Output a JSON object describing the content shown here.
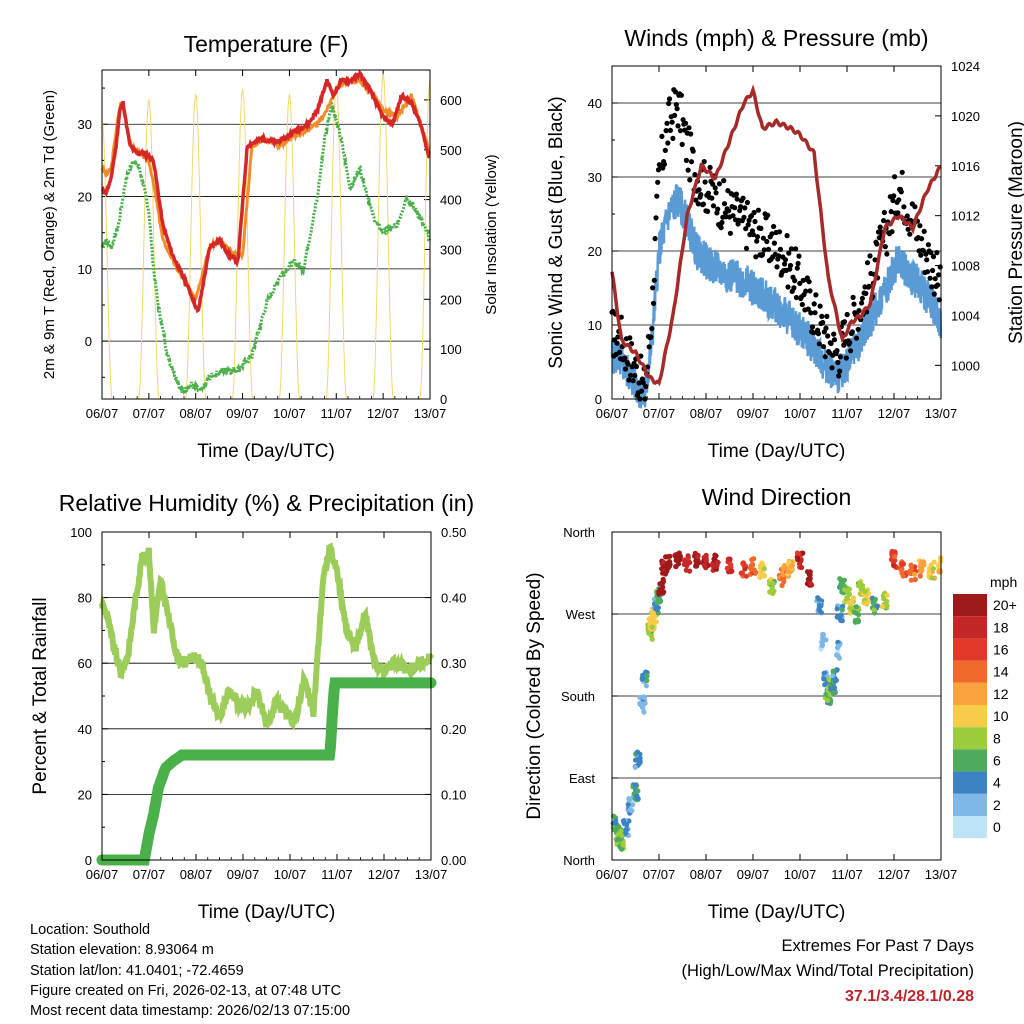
{
  "chart_data": [
    {
      "type": "line",
      "title": "Temperature (F)",
      "xlabel": "Time (Day/UTC)",
      "ylabel": "2m & 9m T (Red, Orange) & 2m Td (Green)",
      "y2label": "Solar Insolation (Yellow)",
      "ylim": [
        -8,
        37.5
      ],
      "y2lim": [
        0,
        660
      ],
      "yticks": [
        0,
        10,
        20,
        30
      ],
      "y2ticks": [
        0,
        100,
        200,
        300,
        400,
        500,
        600
      ],
      "x_ticks": [
        "06/07",
        "07/07",
        "08/07",
        "09/07",
        "10/07",
        "11/07",
        "12/07",
        "13/07"
      ],
      "series": [
        {
          "name": "2m T",
          "color": "#d62728",
          "x": [
            0,
            0.08,
            0.18,
            0.3,
            0.38,
            0.45,
            0.52,
            0.6,
            0.75,
            0.9,
            1.1,
            1.3,
            1.5,
            1.8,
            2.05,
            2.3,
            2.5,
            2.7,
            2.9,
            3.1,
            3.4,
            3.7,
            3.9,
            4.1,
            4.4,
            4.6,
            4.8,
            4.95,
            5.1,
            5.3,
            5.5,
            5.7,
            5.85,
            6.0,
            6.2,
            6.4,
            6.6,
            6.8,
            7.0
          ],
          "values": [
            21,
            20.5,
            22,
            27,
            32,
            33,
            30,
            27,
            26,
            26,
            25,
            16,
            12,
            8,
            4,
            13,
            14,
            12,
            11,
            27,
            28,
            27.5,
            28,
            29,
            30,
            32,
            36,
            34,
            36,
            36,
            37,
            35,
            33,
            31,
            30,
            34,
            33,
            30,
            25
          ]
        },
        {
          "name": "9m T",
          "color": "#f28c28",
          "x": [
            0,
            0.1,
            0.2,
            0.32,
            0.4,
            0.48,
            0.55,
            0.62,
            0.8,
            1.0,
            1.15,
            1.3,
            1.6,
            2.0,
            2.3,
            2.5,
            2.8,
            3.0,
            3.2,
            3.5,
            3.8,
            4.0,
            4.3,
            4.6,
            4.8,
            5.0,
            5.2,
            5.5,
            5.8,
            6.0,
            6.3,
            6.6,
            6.8,
            7.0
          ],
          "values": [
            24,
            23,
            24,
            30,
            33,
            32,
            29,
            27,
            26,
            25,
            20,
            14,
            10,
            6,
            13,
            14,
            12,
            12,
            27,
            28,
            27,
            28,
            29,
            30,
            32,
            35,
            36,
            36,
            34,
            32,
            31,
            34,
            30,
            26
          ]
        },
        {
          "name": "2m Td",
          "color": "#4ab04a",
          "x": [
            0,
            0.1,
            0.2,
            0.35,
            0.5,
            0.65,
            0.8,
            1.0,
            1.1,
            1.2,
            1.4,
            1.7,
            1.9,
            2.1,
            2.3,
            2.6,
            2.9,
            3.2,
            3.5,
            3.8,
            4.1,
            4.3,
            4.6,
            4.75,
            4.9,
            5.1,
            5.3,
            5.5,
            5.8,
            6.0,
            6.3,
            6.5,
            6.8,
            7.0
          ],
          "values": [
            13,
            14,
            13,
            16,
            22,
            25,
            24,
            18,
            10,
            5,
            -2,
            -7,
            -6,
            -7,
            -5,
            -4,
            -4,
            -2,
            5,
            9,
            11,
            10,
            20,
            28,
            33,
            28,
            21,
            24,
            17,
            15,
            16,
            20,
            17,
            14
          ]
        },
        {
          "name": "Solar Insolation",
          "color": "#f5d76e",
          "axis": "y2",
          "day_peaks": [
            600,
            610,
            620,
            610,
            630,
            650,
            640
          ]
        }
      ]
    },
    {
      "type": "line",
      "title": "Winds (mph) & Pressure (mb)",
      "xlabel": "Time (Day/UTC)",
      "ylabel": "Sonic Wind & Gust (Blue, Black)",
      "y2label": "Station Pressure (Maroon)",
      "ylim": [
        0,
        45
      ],
      "y2lim": [
        997.3,
        1024
      ],
      "yticks": [
        0,
        10,
        20,
        30,
        40
      ],
      "y2ticks": [
        1000,
        1004,
        1008,
        1012,
        1016,
        1020,
        1024
      ],
      "x_ticks": [
        "06/07",
        "07/07",
        "08/07",
        "09/07",
        "10/07",
        "11/07",
        "12/07",
        "13/07"
      ],
      "series": [
        {
          "name": "Sonic Wind",
          "color": "#5b9bd5",
          "x": [
            0,
            0.2,
            0.5,
            0.7,
            0.85,
            1.0,
            1.2,
            1.4,
            1.6,
            1.8,
            2.1,
            2.4,
            2.8,
            3.2,
            3.6,
            3.9,
            4.2,
            4.5,
            4.8,
            5.0,
            5.3,
            5.6,
            5.9,
            6.1,
            6.3,
            6.6,
            6.9,
            7.0
          ],
          "values": [
            6,
            5,
            2,
            0,
            8,
            20,
            25,
            27,
            24,
            20,
            18,
            17,
            16,
            14,
            12,
            10,
            8,
            5,
            3,
            5,
            8,
            12,
            16,
            19,
            17,
            15,
            12,
            10
          ]
        },
        {
          "name": "Gust",
          "color": "#000000",
          "x": [
            0,
            0.2,
            0.5,
            0.7,
            0.85,
            1.0,
            1.2,
            1.4,
            1.6,
            1.8,
            2.1,
            2.4,
            2.8,
            3.2,
            3.6,
            3.9,
            4.2,
            4.5,
            4.8,
            5.0,
            5.3,
            5.6,
            5.9,
            6.1,
            6.3,
            6.6,
            6.9,
            7.0
          ],
          "values": [
            9,
            8,
            4,
            1,
            12,
            30,
            37,
            40,
            34,
            30,
            28,
            26,
            24,
            22,
            20,
            17,
            13,
            9,
            6,
            9,
            13,
            18,
            24,
            29,
            26,
            21,
            17,
            14
          ]
        },
        {
          "name": "Station Pressure",
          "color": "#a52a2a",
          "axis": "y2",
          "x": [
            0,
            0.2,
            0.5,
            0.8,
            1.0,
            1.3,
            1.6,
            1.9,
            2.2,
            2.5,
            2.8,
            3.0,
            3.2,
            3.5,
            3.8,
            4.0,
            4.3,
            4.6,
            4.9,
            5.1,
            5.3,
            5.5,
            5.8,
            6.1,
            6.4,
            6.7,
            7.0
          ],
          "values": [
            1007.5,
            1002,
            1001,
            999,
            998.5,
            1004,
            1012,
            1016,
            1015,
            1018,
            1021,
            1022,
            1019,
            1019.5,
            1019,
            1018.5,
            1017,
            1007,
            1002,
            1003.5,
            1004,
            1005,
            1011,
            1012,
            1011,
            1014,
            1016
          ]
        }
      ]
    },
    {
      "type": "line",
      "title": "Relative Humidity (%) & Precipitation (in)",
      "xlabel": "Time (Day/UTC)",
      "ylabel": "Percent & Total Rainfall",
      "ylim": [
        0,
        100
      ],
      "y2lim": [
        0,
        0.5
      ],
      "yticks": [
        0,
        20,
        40,
        60,
        80,
        100
      ],
      "y2ticks": [
        0.0,
        0.1,
        0.2,
        0.3,
        0.4,
        0.5
      ],
      "x_ticks": [
        "06/07",
        "07/07",
        "08/07",
        "09/07",
        "10/07",
        "11/07",
        "12/07",
        "13/07"
      ],
      "series": [
        {
          "name": "Relative Humidity",
          "color": "#9ccc5a",
          "x": [
            0,
            0.1,
            0.25,
            0.4,
            0.55,
            0.7,
            0.85,
            1.0,
            1.1,
            1.25,
            1.4,
            1.6,
            1.75,
            1.9,
            2.1,
            2.3,
            2.5,
            2.7,
            2.9,
            3.1,
            3.3,
            3.5,
            3.7,
            3.9,
            4.1,
            4.3,
            4.5,
            4.7,
            4.85,
            5.0,
            5.2,
            5.4,
            5.6,
            5.8,
            6.0,
            6.2,
            6.5,
            6.8,
            7.0
          ],
          "values": [
            78,
            75,
            65,
            57,
            62,
            78,
            92,
            94,
            70,
            85,
            75,
            62,
            60,
            62,
            61,
            50,
            43,
            52,
            48,
            46,
            52,
            40,
            48,
            45,
            42,
            55,
            45,
            85,
            95,
            88,
            70,
            65,
            75,
            60,
            58,
            60,
            58,
            60,
            62
          ]
        },
        {
          "name": "Total Precipitation",
          "color": "#4ab04a",
          "axis": "y2",
          "x": [
            0,
            0.3,
            0.6,
            0.9,
            1.0,
            1.1,
            1.2,
            1.35,
            1.5,
            1.7,
            2.0,
            2.5,
            3.0,
            3.5,
            4.0,
            4.5,
            4.85,
            4.9,
            4.95,
            5.0,
            5.5,
            6.0,
            6.5,
            7.0
          ],
          "values": [
            0,
            0,
            0,
            0,
            0.04,
            0.07,
            0.11,
            0.14,
            0.15,
            0.16,
            0.16,
            0.16,
            0.16,
            0.16,
            0.16,
            0.16,
            0.16,
            0.22,
            0.27,
            0.27,
            0.27,
            0.27,
            0.27,
            0.27
          ]
        }
      ]
    },
    {
      "type": "scatter",
      "title": "Wind Direction",
      "xlabel": "Time (Day/UTC)",
      "ylabel": "Direction (Colored By Speed)",
      "ylim": [
        0,
        360
      ],
      "ytick_labels": [
        "North",
        "East",
        "South",
        "West",
        "North"
      ],
      "ytick_values": [
        0,
        90,
        180,
        270,
        360
      ],
      "x_ticks": [
        "06/07",
        "07/07",
        "08/07",
        "09/07",
        "10/07",
        "11/07",
        "12/07",
        "13/07"
      ],
      "points_desc": "direction in degrees colored by wind speed",
      "x": [
        0.05,
        0.1,
        0.15,
        0.2,
        0.3,
        0.4,
        0.5,
        0.55,
        0.65,
        0.7,
        0.8,
        0.85,
        0.9,
        0.95,
        1.0,
        1.05,
        1.1,
        1.2,
        1.4,
        1.6,
        1.8,
        2.0,
        2.2,
        2.5,
        2.8,
        3.0,
        3.2,
        3.4,
        3.6,
        3.7,
        3.8,
        4.0,
        4.2,
        4.4,
        4.5,
        4.55,
        4.6,
        4.65,
        4.7,
        4.75,
        4.8,
        4.85,
        4.9,
        5.0,
        5.1,
        5.2,
        5.3,
        5.4,
        5.6,
        5.8,
        6.0,
        6.2,
        6.4,
        6.6,
        6.8,
        7.0
      ],
      "y": [
        40,
        30,
        25,
        20,
        35,
        60,
        75,
        110,
        170,
        200,
        250,
        260,
        270,
        280,
        290,
        300,
        320,
        325,
        330,
        325,
        330,
        328,
        326,
        325,
        320,
        322,
        318,
        300,
        310,
        315,
        320,
        330,
        310,
        280,
        240,
        200,
        180,
        190,
        190,
        200,
        230,
        270,
        300,
        290,
        280,
        270,
        300,
        290,
        280,
        285,
        330,
        320,
        315,
        320,
        318,
        325
      ],
      "speeds": [
        6,
        6,
        7,
        7,
        3,
        2,
        5,
        4,
        2,
        4,
        8,
        9,
        10,
        4,
        6,
        20,
        20,
        20,
        20,
        18,
        20,
        19,
        19,
        17,
        16,
        14,
        10,
        8,
        14,
        12,
        11,
        18,
        20,
        3,
        2,
        3,
        6,
        8,
        5,
        4,
        2,
        4,
        6,
        8,
        10,
        7,
        8,
        10,
        6,
        8,
        16,
        15,
        14,
        12,
        10,
        11
      ],
      "colorbar": {
        "title": "mph",
        "labels": [
          "20+",
          "18",
          "16",
          "14",
          "12",
          "10",
          "8",
          "6",
          "4",
          "2",
          "0"
        ],
        "colors": [
          "#9e1a1a",
          "#c42727",
          "#e0392a",
          "#ef6a2c",
          "#f9a23f",
          "#f6cc4a",
          "#9ccc3e",
          "#4eab5e",
          "#3b83c2",
          "#7fb8e6",
          "#bfe4f8"
        ]
      }
    }
  ],
  "footer": {
    "location": "Location: Southold",
    "elevation": "Station elevation: 8.93064 m",
    "latlon": "Station lat/lon: 41.0401; -72.4659",
    "created": "Figure created on Fri, 2026-02-13, at 07:48 UTC",
    "recent": "Most recent data timestamp: 2026/02/13 07:15:00"
  },
  "extremes": {
    "title": "Extremes For Past 7 Days",
    "subtitle": "(High/Low/Max Wind/Total Precipitation)",
    "values": "37.1/3.4/28.1/0.28"
  }
}
